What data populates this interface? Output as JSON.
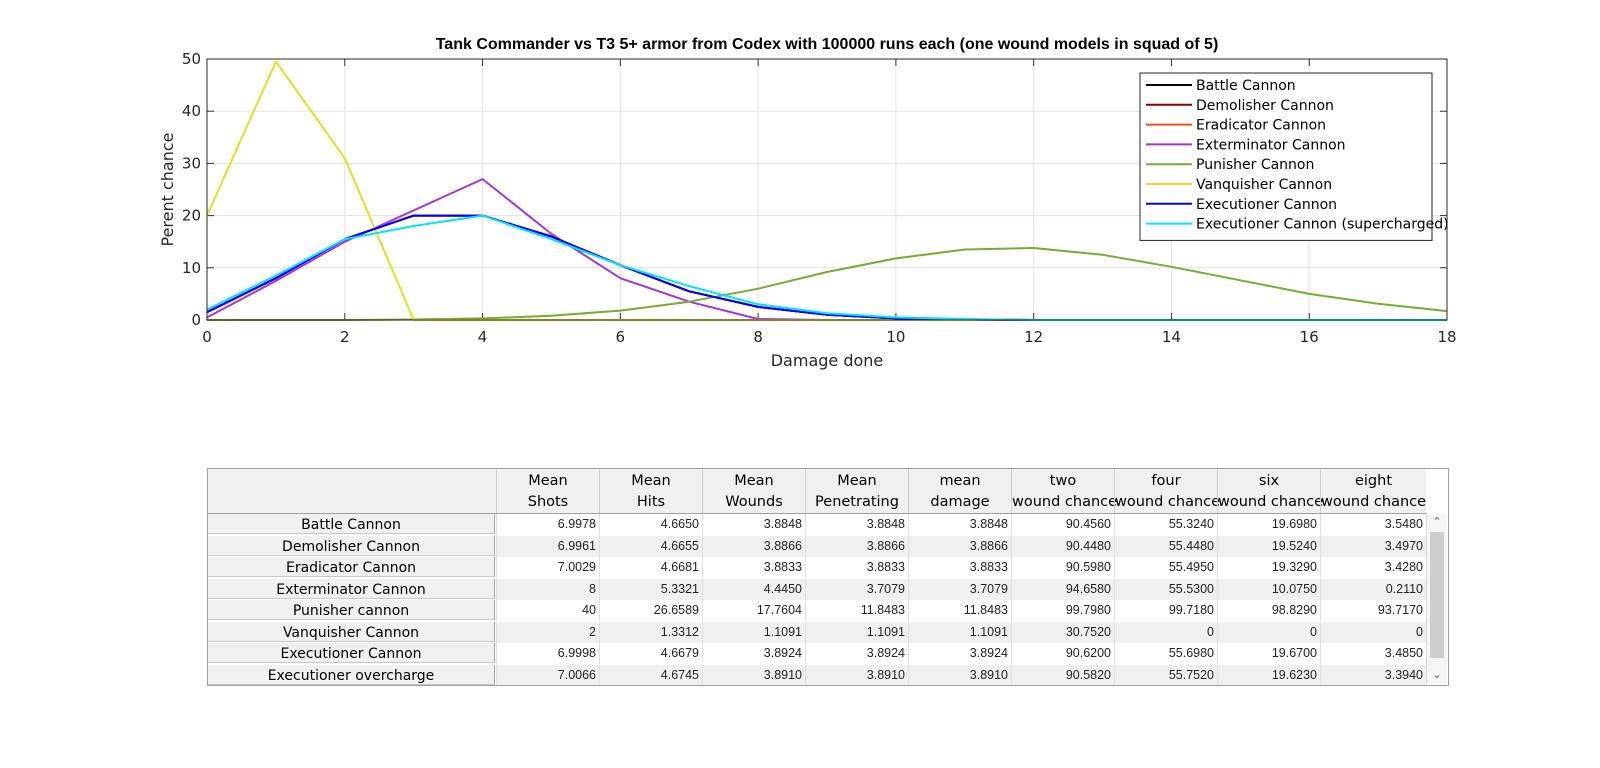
{
  "chart_data": {
    "type": "line",
    "title": "Tank Commander vs T3 5+ armor from Codex with 100000 runs each (one wound models in squad of 5)",
    "xlabel": "Damage done",
    "ylabel": "Perent chance",
    "xlim": [
      0,
      18
    ],
    "ylim": [
      0,
      50
    ],
    "xticks": [
      0,
      2,
      4,
      6,
      8,
      10,
      12,
      14,
      16,
      18
    ],
    "yticks": [
      0,
      10,
      20,
      30,
      40,
      50
    ],
    "grid": true,
    "legend_position": "top-right",
    "series": [
      {
        "name": "Battle Cannon",
        "color": "#000000",
        "x": [
          0,
          1,
          2,
          3,
          4,
          5,
          6,
          7,
          8,
          9,
          10,
          11,
          12,
          13,
          14,
          15,
          16,
          17,
          18
        ],
        "y": [
          1.5,
          8,
          15.5,
          20,
          20,
          16,
          10.5,
          5.5,
          2.5,
          1,
          0.3,
          0.1,
          0,
          0,
          0,
          0,
          0,
          0,
          0
        ]
      },
      {
        "name": "Demolisher Cannon",
        "color": "#8B0000",
        "x": [
          0,
          1,
          2,
          3,
          4,
          5,
          6,
          7,
          8,
          9,
          10,
          11,
          12,
          13,
          14,
          15,
          16,
          17,
          18
        ],
        "y": [
          1.5,
          8,
          15.5,
          20,
          20,
          16,
          10.5,
          5.5,
          2.5,
          1,
          0.3,
          0.1,
          0,
          0,
          0,
          0,
          0,
          0,
          0
        ]
      },
      {
        "name": "Eradicator Cannon",
        "color": "#E8571C",
        "x": [
          0,
          1,
          2,
          3,
          4,
          5,
          6,
          7,
          8,
          9,
          10,
          11,
          12,
          13,
          14,
          15,
          16,
          17,
          18
        ],
        "y": [
          1.5,
          8,
          15.5,
          20,
          20,
          16,
          10.5,
          5.5,
          2.5,
          1,
          0.3,
          0.1,
          0,
          0,
          0,
          0,
          0,
          0,
          0
        ]
      },
      {
        "name": "Exterminator Cannon",
        "color": "#A335DB",
        "x": [
          0,
          1,
          2,
          3,
          4,
          5,
          6,
          7,
          8,
          9,
          10,
          11,
          12,
          13,
          14,
          15,
          16,
          17,
          18
        ],
        "y": [
          0.5,
          7.5,
          15,
          21,
          27,
          16.5,
          8,
          3.5,
          0.2,
          0,
          0,
          0,
          0,
          0,
          0,
          0,
          0,
          0,
          0
        ]
      },
      {
        "name": "Punisher Cannon",
        "color": "#77AC30",
        "x": [
          0,
          1,
          2,
          3,
          4,
          5,
          6,
          7,
          8,
          9,
          10,
          11,
          12,
          13,
          14,
          15,
          16,
          17,
          18
        ],
        "y": [
          0,
          0,
          0,
          0.1,
          0.3,
          0.8,
          1.8,
          3.5,
          6,
          9.2,
          11.8,
          13.5,
          13.8,
          12.5,
          10.2,
          7.6,
          5,
          3.1,
          1.7
        ]
      },
      {
        "name": "Vanquisher Cannon",
        "color": "#E0E020",
        "x": [
          0,
          1,
          2,
          3,
          4,
          5,
          6,
          7,
          8,
          9,
          10,
          11,
          12,
          13,
          14,
          15,
          16,
          17,
          18
        ],
        "y": [
          20,
          49.5,
          31,
          0,
          0,
          0,
          0,
          0,
          0,
          0,
          0,
          0,
          0,
          0,
          0,
          0,
          0,
          0,
          0
        ]
      },
      {
        "name": "Executioner Cannon",
        "color": "#0000FF",
        "x": [
          0,
          1,
          2,
          3,
          4,
          5,
          6,
          7,
          8,
          9,
          10,
          11,
          12,
          13,
          14,
          15,
          16,
          17,
          18
        ],
        "y": [
          1.5,
          8,
          15.5,
          20,
          20,
          16,
          10.5,
          5.5,
          2.5,
          1,
          0.3,
          0.1,
          0,
          0,
          0,
          0,
          0,
          0,
          0
        ]
      },
      {
        "name": "Executioner Cannon (supercharged)",
        "color": "#00E5FF",
        "x": [
          0,
          1,
          2,
          3,
          4,
          5,
          6,
          7,
          8,
          9,
          10,
          11,
          12,
          13,
          14,
          15,
          16,
          17,
          18
        ],
        "y": [
          2,
          8.5,
          15.5,
          18,
          20,
          15.5,
          10.5,
          6.5,
          3,
          1.3,
          0.5,
          0.2,
          0,
          0,
          0,
          0,
          0,
          0,
          0
        ]
      }
    ]
  },
  "table": {
    "headers": [
      [
        "Mean",
        "Shots"
      ],
      [
        "Mean",
        "Hits"
      ],
      [
        "Mean",
        "Wounds"
      ],
      [
        "Mean",
        "Penetrating"
      ],
      [
        "mean",
        "damage"
      ],
      [
        "two",
        "wound chance"
      ],
      [
        "four",
        "wound chance"
      ],
      [
        "six",
        "wound chance"
      ],
      [
        "eight",
        "wound chance"
      ]
    ],
    "rows": [
      {
        "label": "Battle Cannon",
        "values": [
          "6.9978",
          "4.6650",
          "3.8848",
          "3.8848",
          "3.8848",
          "90.4560",
          "55.3240",
          "19.6980",
          "3.5480"
        ]
      },
      {
        "label": "Demolisher Cannon",
        "values": [
          "6.9961",
          "4.6655",
          "3.8866",
          "3.8866",
          "3.8866",
          "90.4480",
          "55.4480",
          "19.5240",
          "3.4970"
        ]
      },
      {
        "label": "Eradicator Cannon",
        "values": [
          "7.0029",
          "4.6681",
          "3.8833",
          "3.8833",
          "3.8833",
          "90.5980",
          "55.4950",
          "19.3290",
          "3.4280"
        ]
      },
      {
        "label": "Exterminator Cannon",
        "values": [
          "8",
          "5.3321",
          "4.4450",
          "3.7079",
          "3.7079",
          "94.6580",
          "55.5300",
          "10.0750",
          "0.2110"
        ]
      },
      {
        "label": "Punisher cannon",
        "values": [
          "40",
          "26.6589",
          "17.7604",
          "11.8483",
          "11.8483",
          "99.7980",
          "99.7180",
          "98.8290",
          "93.7170"
        ]
      },
      {
        "label": "Vanquisher Cannon",
        "values": [
          "2",
          "1.3312",
          "1.1091",
          "1.1091",
          "1.1091",
          "30.7520",
          "0",
          "0",
          "0"
        ]
      },
      {
        "label": "Executioner Cannon",
        "values": [
          "6.9998",
          "4.6679",
          "3.8924",
          "3.8924",
          "3.8924",
          "90.6200",
          "55.6980",
          "19.6700",
          "3.4850"
        ]
      },
      {
        "label": "Executioner overcharge",
        "values": [
          "7.0066",
          "4.6745",
          "3.8910",
          "3.8910",
          "3.8910",
          "90.5820",
          "55.7520",
          "19.6230",
          "3.3940"
        ]
      }
    ]
  },
  "icons": {
    "scroll_up": "scroll-up-arrow-icon",
    "scroll_down": "scroll-down-arrow-icon"
  }
}
